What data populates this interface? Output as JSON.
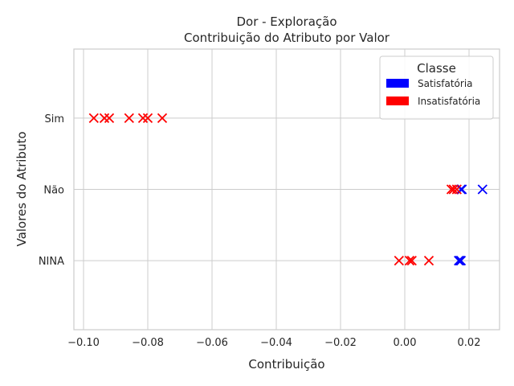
{
  "chart_data": {
    "type": "scatter",
    "title_line1": "Dor - Exploração",
    "title_line2": "Contribuição do Atributo por Valor",
    "xlabel": "Contribuição",
    "ylabel": "Valores do Atributo",
    "xlim": [
      -0.103,
      0.0295
    ],
    "xticks": [
      -0.1,
      -0.08,
      -0.06,
      -0.04,
      -0.02,
      0.0,
      0.02
    ],
    "xtick_labels": [
      "−0.10",
      "−0.08",
      "−0.06",
      "−0.04",
      "−0.02",
      "0.00",
      "0.02"
    ],
    "categories": [
      "Sim",
      "Não",
      "NINA"
    ],
    "ylim": [
      -0.97,
      2.97
    ],
    "grid": true,
    "marker": "x",
    "legend": {
      "title": "Classe",
      "placement": "top-right",
      "entries": [
        {
          "label": "Satisfatória",
          "color": "#0000ff"
        },
        {
          "label": "Insatisfatória",
          "color": "#ff0000"
        }
      ]
    },
    "series": [
      {
        "name": "Satisfatória",
        "color": "#0000ff",
        "points": [
          {
            "category": "Não",
            "x": 0.0175
          },
          {
            "category": "Não",
            "x": 0.0178
          },
          {
            "category": "Não",
            "x": 0.0242
          },
          {
            "category": "NINA",
            "x": 0.0168
          },
          {
            "category": "NINA",
            "x": 0.0172
          },
          {
            "category": "NINA",
            "x": 0.0175
          }
        ]
      },
      {
        "name": "Insatisfatória",
        "color": "#ff0000",
        "points": [
          {
            "category": "Sim",
            "x": -0.0968
          },
          {
            "category": "Sim",
            "x": -0.0935
          },
          {
            "category": "Sim",
            "x": -0.092
          },
          {
            "category": "Sim",
            "x": -0.0858
          },
          {
            "category": "Sim",
            "x": -0.0815
          },
          {
            "category": "Sim",
            "x": -0.08
          },
          {
            "category": "Sim",
            "x": -0.0755
          },
          {
            "category": "Não",
            "x": 0.0145
          },
          {
            "category": "Não",
            "x": 0.0152
          },
          {
            "category": "Não",
            "x": 0.0162
          },
          {
            "category": "NINA",
            "x": -0.0018
          },
          {
            "category": "NINA",
            "x": 0.0015
          },
          {
            "category": "NINA",
            "x": 0.0022
          },
          {
            "category": "NINA",
            "x": 0.0075
          }
        ]
      }
    ]
  }
}
